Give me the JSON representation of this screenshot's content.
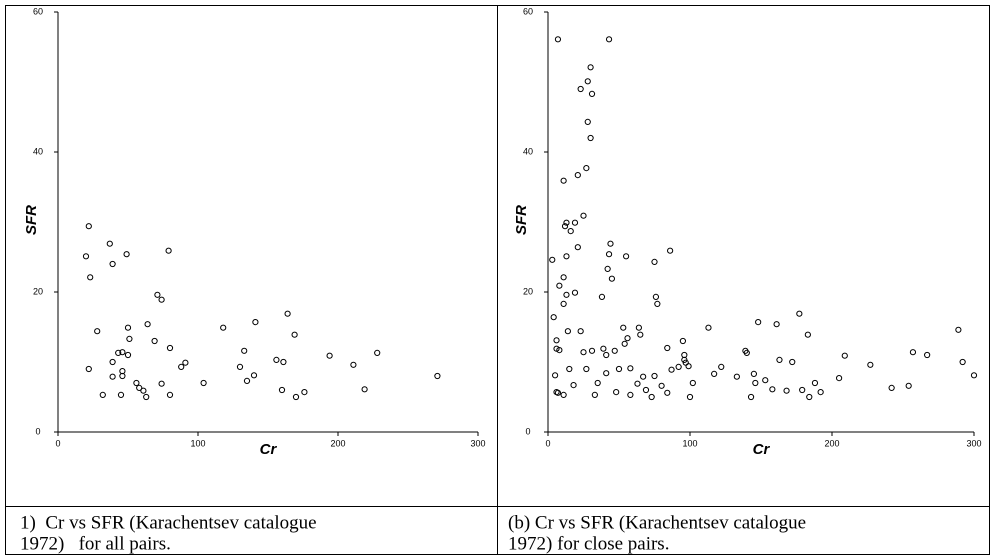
{
  "chart_data": [
    {
      "type": "scatter",
      "xlabel": "Cr",
      "ylabel": "SFR",
      "xlim": [
        0,
        300
      ],
      "ylim": [
        0,
        60
      ],
      "xticks": [
        0,
        100,
        200,
        300
      ],
      "yticks": [
        0,
        20,
        40,
        60
      ],
      "caption": [
        "1)  Cr vs SFR (Karachentsev catalogue",
        "1972)   for all pairs."
      ],
      "x": [
        20,
        22,
        23,
        22,
        28,
        32,
        37,
        39,
        39,
        39,
        43,
        45,
        46,
        46,
        46,
        49,
        50,
        50,
        51,
        56,
        58,
        61,
        63,
        64,
        69,
        71,
        74,
        74,
        79,
        80,
        80,
        88,
        91,
        104,
        118,
        130,
        133,
        135,
        140,
        141,
        156,
        160,
        161,
        164,
        169,
        170,
        176,
        194,
        211,
        219,
        228,
        271
      ],
      "values": [
        25.1,
        29.4,
        22.1,
        9.0,
        14.4,
        5.3,
        26.9,
        24,
        10,
        7.9,
        11.3,
        5.3,
        11.4,
        8,
        8.7,
        25.4,
        14.9,
        11,
        13.3,
        7,
        6.3,
        5.9,
        5,
        15.4,
        13,
        19.6,
        18.9,
        6.9,
        25.9,
        12,
        5.3,
        9.3,
        9.9,
        7,
        14.9,
        9.3,
        11.6,
        7.3,
        8.1,
        15.7,
        10.3,
        6,
        10,
        16.9,
        13.9,
        5,
        5.7,
        10.9,
        9.6,
        6.1,
        11.3,
        8
      ]
    },
    {
      "type": "scatter",
      "xlabel": "Cr",
      "ylabel": "SFR",
      "xlim": [
        0,
        300
      ],
      "ylim": [
        0,
        60
      ],
      "xticks": [
        0,
        100,
        200,
        300
      ],
      "yticks": [
        0,
        20,
        40,
        60
      ],
      "caption": [
        "(b) Cr vs SFR (Karachentsev catalogue",
        "1972) for close pairs."
      ],
      "x": [
        7,
        43,
        23,
        30,
        28,
        31,
        28,
        30,
        27,
        11,
        21,
        25,
        13,
        16,
        12,
        19,
        21,
        13,
        3,
        11,
        8,
        11,
        19,
        13,
        4,
        14,
        6,
        5,
        6,
        7,
        11,
        8,
        6,
        15,
        18,
        23,
        25,
        27,
        31,
        33,
        35,
        38,
        39,
        41,
        41,
        43,
        42,
        44,
        45,
        47,
        48,
        50,
        53,
        55,
        54,
        56,
        58,
        58,
        63,
        64,
        65,
        67,
        69,
        73,
        75,
        75,
        76,
        77,
        80,
        86,
        84,
        84,
        87,
        92,
        95,
        96,
        96,
        97,
        99,
        100,
        102,
        113,
        117,
        122,
        133,
        139,
        140,
        143,
        145,
        148,
        146,
        153,
        158,
        161,
        163,
        168,
        172,
        177,
        179,
        183,
        184,
        188,
        192,
        209,
        205,
        227,
        242,
        254,
        257,
        267,
        289,
        292,
        300
      ],
      "values": [
        56.1,
        56.1,
        49,
        52.1,
        50.1,
        48.3,
        44.3,
        42,
        37.7,
        35.9,
        36.7,
        30.9,
        29.9,
        28.7,
        29.4,
        29.9,
        26.4,
        25.1,
        24.6,
        22.1,
        20.9,
        18.3,
        19.9,
        19.6,
        16.4,
        14.4,
        13.1,
        8.1,
        5.7,
        5.6,
        5.3,
        11.7,
        11.9,
        9,
        6.7,
        14.4,
        11.4,
        9,
        11.6,
        5.3,
        7,
        19.3,
        11.9,
        8.4,
        11,
        25.4,
        23.3,
        26.9,
        21.9,
        11.6,
        5.7,
        9,
        14.9,
        25.1,
        12.6,
        13.4,
        9.1,
        5.3,
        6.9,
        14.9,
        13.9,
        7.9,
        6,
        5,
        8,
        24.3,
        19.3,
        18.3,
        6.6,
        25.9,
        12,
        5.6,
        8.9,
        9.3,
        13,
        11,
        10.3,
        9.9,
        9.4,
        5,
        7,
        14.9,
        8.3,
        9.3,
        7.9,
        11.6,
        11.3,
        5,
        8.3,
        15.7,
        7,
        7.4,
        6.1,
        15.4,
        10.3,
        5.9,
        10,
        16.9,
        6,
        13.9,
        5,
        7,
        5.7,
        10.9,
        7.7,
        9.6,
        6.3,
        6.6,
        11.4,
        11,
        14.6,
        10,
        8.1
      ]
    }
  ]
}
